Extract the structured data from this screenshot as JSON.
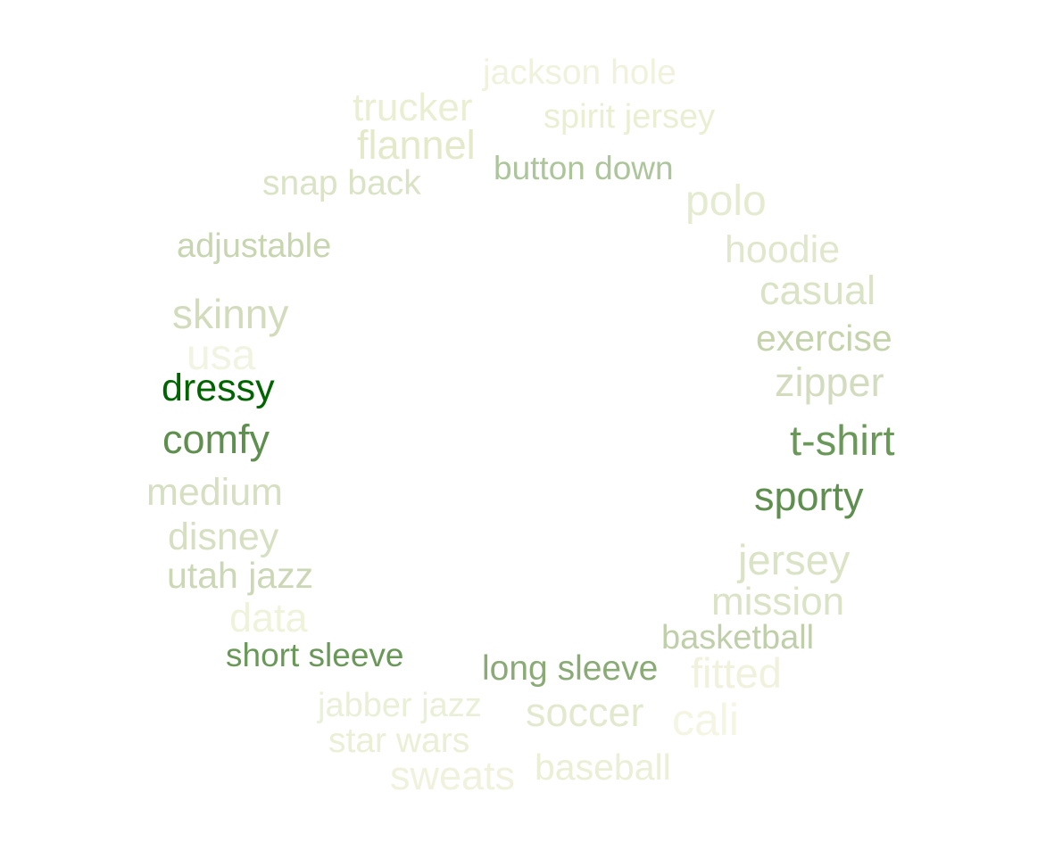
{
  "words": [
    {
      "id": "jackson-hole",
      "text": "jackson hole",
      "color": "#f0f2dd"
    },
    {
      "id": "trucker",
      "text": "trucker",
      "color": "#eaefd3"
    },
    {
      "id": "spirit-jersey",
      "text": "spirit jersey",
      "color": "#eaefd3"
    },
    {
      "id": "flannel",
      "text": "flannel",
      "color": "#e3e9c9"
    },
    {
      "id": "button-down",
      "text": "button down",
      "color": "#adc59a"
    },
    {
      "id": "snap-back",
      "text": "snap back",
      "color": "#dbe3c6"
    },
    {
      "id": "polo",
      "text": "polo",
      "color": "#e5ebd0"
    },
    {
      "id": "adjustable",
      "text": "adjustable",
      "color": "#c8d5b1"
    },
    {
      "id": "hoodie",
      "text": "hoodie",
      "color": "#e0e7cc"
    },
    {
      "id": "casual",
      "text": "casual",
      "color": "#dbe3c6"
    },
    {
      "id": "skinny",
      "text": "skinny",
      "color": "#d2dcbc"
    },
    {
      "id": "exercise",
      "text": "exercise",
      "color": "#c4d3ab"
    },
    {
      "id": "usa",
      "text": "usa",
      "color": "#f1f4e2"
    },
    {
      "id": "zipper",
      "text": "zipper",
      "color": "#d3dcbe"
    },
    {
      "id": "dressy",
      "text": "dressy",
      "color": "#006400"
    },
    {
      "id": "t-shirt",
      "text": "t-shirt",
      "color": "#6a9858"
    },
    {
      "id": "comfy",
      "text": "comfy",
      "color": "#5e8f4e"
    },
    {
      "id": "sporty",
      "text": "sporty",
      "color": "#5e8f4e"
    },
    {
      "id": "medium",
      "text": "medium",
      "color": "#d6dfc2"
    },
    {
      "id": "disney",
      "text": "disney",
      "color": "#d6dfc2"
    },
    {
      "id": "jersey",
      "text": "jersey",
      "color": "#dbe3c6"
    },
    {
      "id": "utah-jazz",
      "text": "utah jazz",
      "color": "#cbd7b5"
    },
    {
      "id": "mission",
      "text": "mission",
      "color": "#dbe3c6"
    },
    {
      "id": "data",
      "text": "data",
      "color": "#eff3dc"
    },
    {
      "id": "basketball",
      "text": "basketball",
      "color": "#bfcfa9"
    },
    {
      "id": "short-sleeve",
      "text": "short sleeve",
      "color": "#6a9858"
    },
    {
      "id": "long-sleeve",
      "text": "long sleeve",
      "color": "#8aab76"
    },
    {
      "id": "fitted",
      "text": "fitted",
      "color": "#f0f2dd"
    },
    {
      "id": "jabber-jazz",
      "text": "jabber jazz",
      "color": "#eaefd8"
    },
    {
      "id": "soccer",
      "text": "soccer",
      "color": "#e3e9cf"
    },
    {
      "id": "cali",
      "text": "cali",
      "color": "#f4f5e3"
    },
    {
      "id": "star-wars",
      "text": "star wars",
      "color": "#eaefd6"
    },
    {
      "id": "sweats",
      "text": "sweats",
      "color": "#f0f2dd"
    },
    {
      "id": "baseball",
      "text": "baseball",
      "color": "#eaefd6"
    }
  ]
}
